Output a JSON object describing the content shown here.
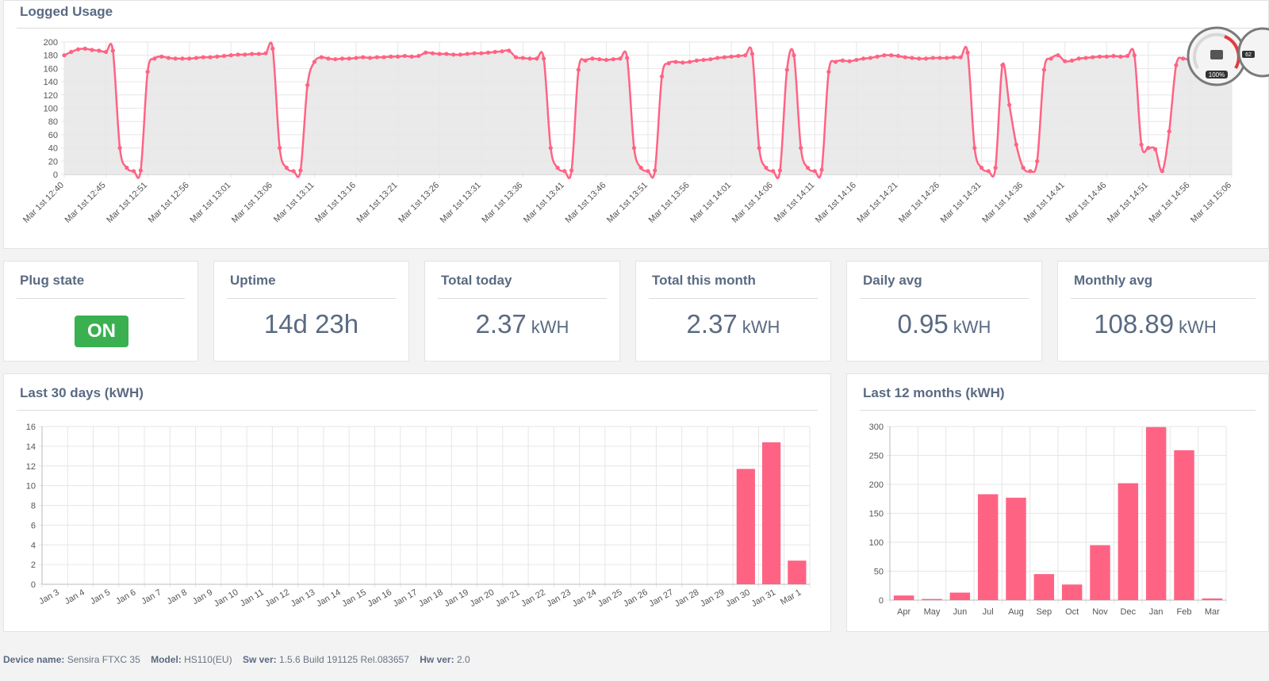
{
  "logged_usage": {
    "title": "Logged Usage",
    "chart_data": {
      "type": "area",
      "y_ticks": [
        0,
        20,
        40,
        60,
        80,
        100,
        120,
        140,
        160,
        180,
        200
      ],
      "ylim": [
        0,
        200
      ],
      "x_labels": [
        "Mar 1st 12:40",
        "Mar 1st 12:45",
        "Mar 1st 12:51",
        "Mar 1st 12:56",
        "Mar 1st 13:01",
        "Mar 1st 13:06",
        "Mar 1st 13:11",
        "Mar 1st 13:16",
        "Mar 1st 13:21",
        "Mar 1st 13:26",
        "Mar 1st 13:31",
        "Mar 1st 13:36",
        "Mar 1st 13:41",
        "Mar 1st 13:46",
        "Mar 1st 13:51",
        "Mar 1st 13:56",
        "Mar 1st 14:01",
        "Mar 1st 14:06",
        "Mar 1st 14:11",
        "Mar 1st 14:16",
        "Mar 1st 14:21",
        "Mar 1st 14:26",
        "Mar 1st 14:31",
        "Mar 1st 14:36",
        "Mar 1st 14:41",
        "Mar 1st 14:46",
        "Mar 1st 14:51",
        "Mar 1st 14:56",
        "Mar 1st 15:06"
      ],
      "values": [
        180,
        185,
        189,
        190,
        188,
        187,
        185,
        187,
        40,
        10,
        5,
        6,
        155,
        175,
        178,
        176,
        175,
        175,
        175,
        176,
        177,
        177,
        178,
        179,
        180,
        181,
        181,
        182,
        182,
        183,
        190,
        40,
        10,
        5,
        6,
        135,
        170,
        177,
        175,
        174,
        175,
        175,
        176,
        177,
        176,
        177,
        177,
        178,
        178,
        179,
        178,
        179,
        184,
        183,
        182,
        182,
        181,
        181,
        182,
        183,
        183,
        184,
        185,
        186,
        187,
        177,
        176,
        175,
        175,
        175,
        40,
        10,
        5,
        6,
        158,
        172,
        175,
        174,
        173,
        174,
        175,
        176,
        40,
        10,
        5,
        6,
        148,
        168,
        170,
        169,
        170,
        172,
        173,
        174,
        176,
        177,
        178,
        179,
        180,
        182,
        40,
        10,
        5,
        6,
        158,
        180,
        40,
        10,
        5,
        7,
        155,
        170,
        172,
        171,
        173,
        175,
        176,
        178,
        180,
        180,
        179,
        177,
        176,
        175,
        175,
        176,
        176,
        176,
        177,
        177,
        184,
        40,
        10,
        5,
        10,
        165,
        105,
        45,
        10,
        5,
        20,
        158,
        175,
        180,
        171,
        172,
        175,
        176,
        177,
        178,
        178,
        179,
        178,
        179,
        180,
        45,
        40,
        38,
        5,
        65,
        165,
        175,
        172,
        171,
        172,
        173,
        174,
        175,
        174
      ]
    }
  },
  "stats": {
    "plug_state": {
      "label": "Plug state",
      "value": "ON"
    },
    "uptime": {
      "label": "Uptime",
      "value": "14d 23h"
    },
    "total_today": {
      "label": "Total today",
      "value": "2.37",
      "unit": "kWH"
    },
    "total_month": {
      "label": "Total this month",
      "value": "2.37",
      "unit": "kWH"
    },
    "daily_avg": {
      "label": "Daily avg",
      "value": "0.95",
      "unit": "kWH"
    },
    "monthly_avg": {
      "label": "Monthly avg",
      "value": "108.89",
      "unit": "kWH"
    }
  },
  "last_30_days": {
    "title": "Last 30 days (kWH)",
    "chart_data": {
      "type": "bar",
      "categories": [
        "Jan 3",
        "Jan 4",
        "Jan 5",
        "Jan 6",
        "Jan 7",
        "Jan 8",
        "Jan 9",
        "Jan 10",
        "Jan 11",
        "Jan 12",
        "Jan 13",
        "Jan 14",
        "Jan 15",
        "Jan 16",
        "Jan 17",
        "Jan 18",
        "Jan 19",
        "Jan 20",
        "Jan 21",
        "Jan 22",
        "Jan 23",
        "Jan 24",
        "Jan 25",
        "Jan 26",
        "Jan 27",
        "Jan 28",
        "Jan 29",
        "Jan 30",
        "Jan 31",
        "Mar 1"
      ],
      "values": [
        0,
        0,
        0,
        0,
        0,
        0,
        0,
        0,
        0,
        0,
        0,
        0,
        0,
        0,
        0,
        0,
        0,
        0,
        0,
        0,
        0,
        0,
        0,
        0,
        0,
        0,
        0,
        11.7,
        14.4,
        2.4
      ],
      "y_ticks": [
        0,
        2,
        4,
        6,
        8,
        10,
        12,
        14,
        16
      ],
      "ylim": [
        0,
        16
      ]
    }
  },
  "last_12_months": {
    "title": "Last 12 months (kWH)",
    "chart_data": {
      "type": "bar",
      "categories": [
        "Apr",
        "May",
        "Jun",
        "Jul",
        "Aug",
        "Sep",
        "Oct",
        "Nov",
        "Dec",
        "Jan",
        "Feb",
        "Mar"
      ],
      "values": [
        8,
        2,
        13,
        183,
        177,
        45,
        27,
        95,
        202,
        299,
        259,
        3
      ],
      "y_ticks": [
        0,
        50,
        100,
        150,
        200,
        250,
        300
      ],
      "ylim": [
        0,
        300
      ]
    }
  },
  "footer": {
    "device_label": "Device name:",
    "device_value": "Sensira FTXC 35",
    "model_label": "Model:",
    "model_value": "HS110(EU)",
    "sw_label": "Sw ver:",
    "sw_value": "1.5.6 Build 191125 Rel.083657",
    "hw_label": "Hw ver:",
    "hw_value": "2.0"
  },
  "widget": {
    "gauge_label": "100%",
    "second_label": "62"
  },
  "colors": {
    "accent": "#ff6384",
    "fill": "#e6e6e6",
    "on": "#3ab050"
  }
}
